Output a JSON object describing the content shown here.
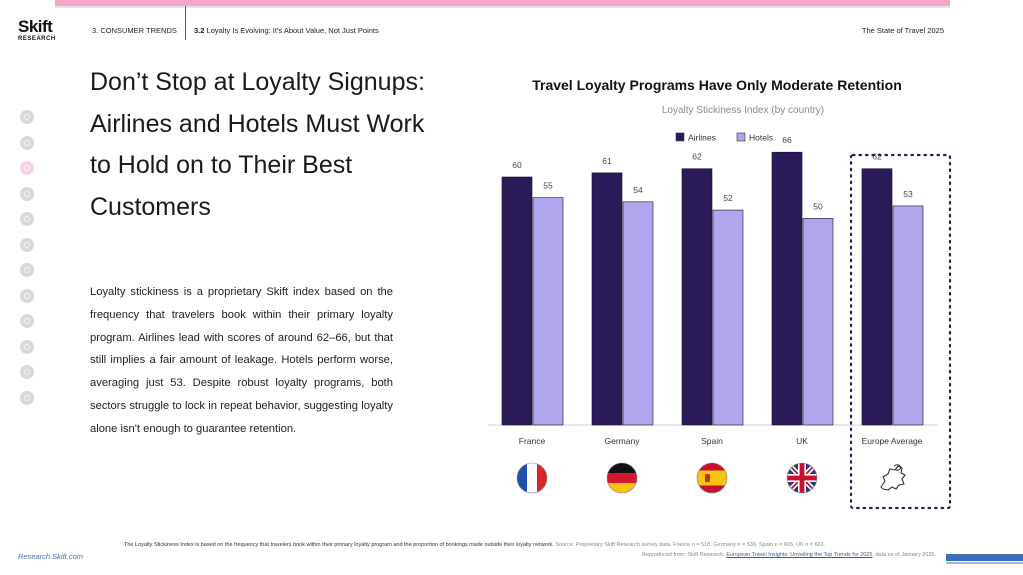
{
  "brand": {
    "logo_top": "Skift",
    "logo_bottom": "RESEARCH",
    "url": "Research.Skift.com"
  },
  "header": {
    "section": "3. CONSUMER TRENDS",
    "subsection_num": "3.2",
    "subsection_title": " Loyalty Is Evolving: It's About Value, Not Just Points",
    "doc_title": "The State of Travel 2025"
  },
  "headline": "Don’t Stop at Loyalty Signups: Airlines and Hotels Must Work to Hold on to Their Best Customers",
  "body": "Loyalty stickiness is a proprietary Skift index based on the frequency that travelers book within their primary loyalty program. Airlines lead with scores of around 62–66, but that still implies a fair amount of leakage. Hotels perform worse, averaging just 53. Despite robust loyalty programs, both sectors struggle to lock in repeat behavior, suggesting loyalty alone isn't enough to guarantee retention.",
  "chart_data": {
    "type": "bar",
    "title": "Travel Loyalty Programs Have Only Moderate Retention",
    "subtitle": "Loyalty Stickiness Index (by country)",
    "categories": [
      "France",
      "Germany",
      "Spain",
      "UK",
      "Europe Average"
    ],
    "series": [
      {
        "name": "Airlines",
        "values": [
          60,
          61,
          62,
          66,
          62
        ],
        "color": "#2a1a57"
      },
      {
        "name": "Hotels",
        "values": [
          55,
          54,
          52,
          50,
          53
        ],
        "color": "#b0a6ec"
      }
    ],
    "ylim": [
      0,
      75
    ],
    "legend": "top-center",
    "grid": false,
    "highlight_category": "Europe Average",
    "category_icons": [
      "flag-france",
      "flag-germany",
      "flag-spain",
      "flag-uk",
      "europe-map-icon"
    ]
  },
  "footer": {
    "note": "The Loyalty Stickiness Index is based on the frequency that travelers book within their primary loyalty program and the proportion of bookings made outside their loyalty network.",
    "source": " Source: Proprietary Skift Research survey data. France n = 518, Germany n = 530, Spain n = 665, UK n = 661.",
    "repro_prefix": "Reproduced from: Skift Research, ",
    "repro_link": "European Travel Insights: Unveiling the Top Trends for 2025",
    "repro_suffix": ", data as of January 2025."
  },
  "side_nav": [
    "nav-1",
    "nav-2",
    "nav-3",
    "nav-4",
    "nav-5",
    "nav-6",
    "nav-7",
    "nav-8",
    "nav-9",
    "nav-10",
    "nav-11",
    "nav-12"
  ]
}
